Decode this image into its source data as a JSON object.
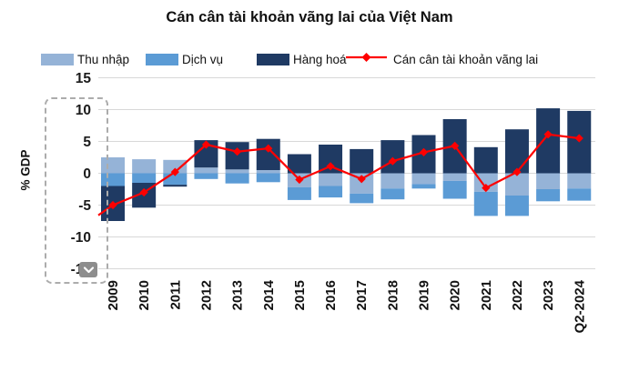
{
  "title": "Cán cân tài khoản vãng lai của Việt Nam",
  "y_axis": {
    "label": "% GDP"
  },
  "selection_overlay": {
    "chevron_icon": "chevron-down",
    "purpose": "axis-selection"
  },
  "chart_data": {
    "type": "combo-stacked-bar-line",
    "title": "Cán cân tài khoản vãng lai của Việt Nam",
    "ylabel": "% GDP",
    "ylim": [
      -15,
      15
    ],
    "y_ticks": [
      15,
      10,
      5,
      0,
      -5,
      -10,
      -15
    ],
    "grid": true,
    "legend_position": "top",
    "categories": [
      "2009",
      "2010",
      "2011",
      "2012",
      "2013",
      "2014",
      "2015",
      "2016",
      "2017",
      "2018",
      "2019",
      "2020",
      "2021",
      "2022",
      "2023",
      "Q2-2024"
    ],
    "series": [
      {
        "name": "Thu nhập",
        "type": "bar",
        "color": "#95B3D7",
        "values": [
          2.5,
          2.2,
          2.1,
          0.9,
          0.6,
          0.5,
          -2.2,
          -2.0,
          -3.2,
          -2.4,
          -1.7,
          -1.2,
          -2.9,
          -3.5,
          -2.5,
          -2.4
        ]
      },
      {
        "name": "Dịch vụ",
        "type": "bar",
        "color": "#5B9BD5",
        "values": [
          -2.0,
          -1.5,
          -1.8,
          -0.9,
          -1.6,
          -1.4,
          -2.0,
          -1.8,
          -1.5,
          -1.7,
          -0.7,
          -2.8,
          -3.8,
          -3.2,
          -1.9,
          -1.9
        ]
      },
      {
        "name": "Hàng hoá",
        "type": "bar",
        "color": "#1F3A63",
        "values": [
          -5.5,
          -3.9,
          -0.3,
          4.3,
          4.3,
          4.9,
          3.0,
          4.5,
          3.8,
          5.2,
          6.0,
          8.5,
          4.1,
          6.9,
          10.2,
          9.8
        ]
      },
      {
        "name": "Cán cân tài khoản vãng lai",
        "type": "line",
        "color": "#FE0000",
        "marker": "diamond",
        "lead_in_value": -6.6,
        "values": [
          -5.0,
          -3.0,
          0.2,
          4.5,
          3.4,
          3.9,
          -1.0,
          1.1,
          -0.9,
          1.9,
          3.3,
          4.3,
          -2.3,
          0.2,
          6.1,
          5.5
        ]
      }
    ],
    "colors": {
      "grid": "#D8D8D8",
      "background": "#FFFFFF",
      "selection_dash": "#ACACAC",
      "chevron_button": "#8D8D8D"
    }
  }
}
